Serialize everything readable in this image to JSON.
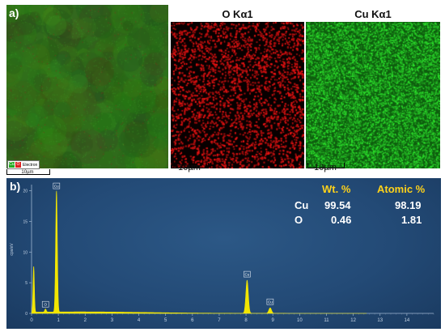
{
  "panel_a": {
    "label": "a)",
    "maps": [
      {
        "title": "",
        "scale_label": "10µm"
      },
      {
        "title": "O Kα1",
        "scale_label": "10µm"
      },
      {
        "title": "Cu Kα1",
        "scale_label": "10µm"
      }
    ],
    "legend": {
      "cu_symbol": "Cu",
      "o_symbol": "O",
      "text": "Electron"
    },
    "colors": {
      "cu": "#22d022",
      "o": "#e02020",
      "composite_bg": "#2e6a1a"
    }
  },
  "panel_b": {
    "label": "b)",
    "table": {
      "headers": [
        "Wt. %",
        "Atomic %"
      ],
      "rows": [
        {
          "element": "Cu",
          "wt": "99.54",
          "atomic": "98.19"
        },
        {
          "element": "O",
          "wt": "0.46",
          "atomic": "1.81"
        }
      ]
    },
    "colors": {
      "spectrum": "#f2e600",
      "header": "#ffd21a"
    }
  },
  "chart_data": {
    "type": "area",
    "ylabel": "cps/eV",
    "xlim": [
      0,
      15
    ],
    "ylim": [
      0,
      21
    ],
    "x_ticks": [
      "0",
      "1",
      "2",
      "3",
      "4",
      "5",
      "6",
      "7",
      "8",
      "9",
      "10",
      "11",
      "12",
      "13",
      "14"
    ],
    "y_ticks": [
      "0",
      "5",
      "10",
      "15",
      "20"
    ],
    "peaks": [
      {
        "x": 0.08,
        "y": 7.5,
        "width": 0.035,
        "label": ""
      },
      {
        "x": 0.52,
        "y": 0.5,
        "width": 0.04,
        "label": "O"
      },
      {
        "x": 0.93,
        "y": 19.8,
        "width": 0.045,
        "label": "Cu"
      },
      {
        "x": 8.04,
        "y": 5.4,
        "width": 0.065,
        "label": "Cu"
      },
      {
        "x": 8.9,
        "y": 0.9,
        "width": 0.07,
        "label": "Cu"
      }
    ],
    "background_level": 0.25
  }
}
